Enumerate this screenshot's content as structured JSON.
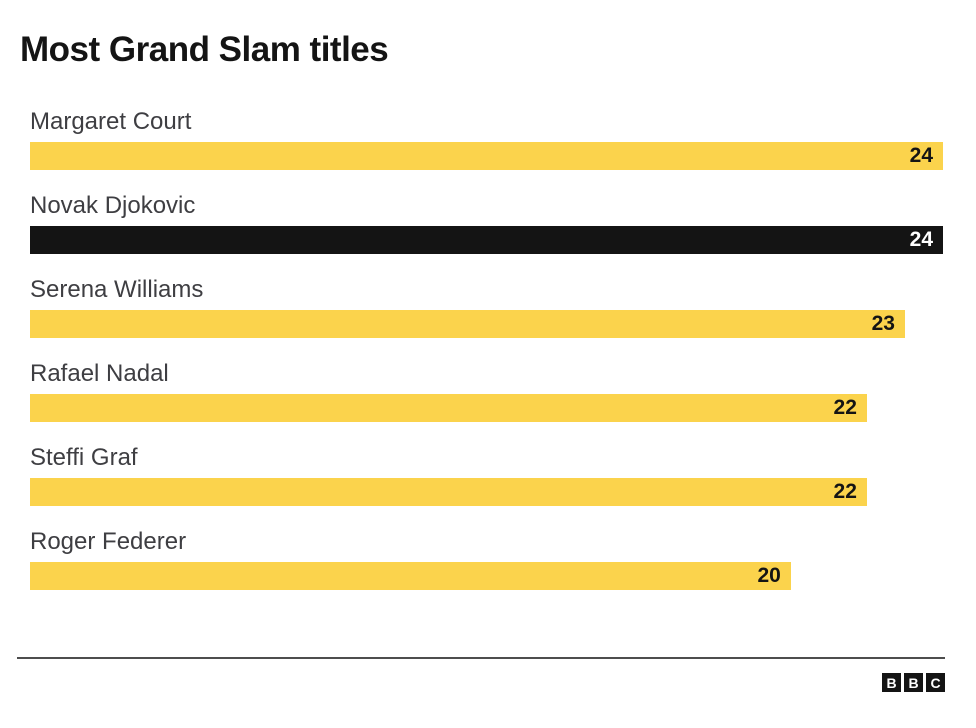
{
  "chart_data": {
    "type": "bar",
    "orientation": "horizontal",
    "title": "Most Grand Slam titles",
    "categories": [
      "Margaret Court",
      "Novak Djokovic",
      "Serena Williams",
      "Rafael Nadal",
      "Steffi Graf",
      "Roger Federer"
    ],
    "values": [
      24,
      24,
      23,
      22,
      22,
      20
    ],
    "xlim": [
      0,
      24
    ],
    "grid": false,
    "legend": false,
    "value_labels": "inside-end",
    "highlighted_category": "Novak Djokovic",
    "bar_color": "#FBD34C",
    "highlight_bar_color": "#141414",
    "value_label_color": "#141414",
    "highlight_value_label_color": "#FFFFFF",
    "category_label_color": "#3E3E42"
  },
  "footer": {
    "logo_letters": [
      "B",
      "B",
      "C"
    ]
  }
}
